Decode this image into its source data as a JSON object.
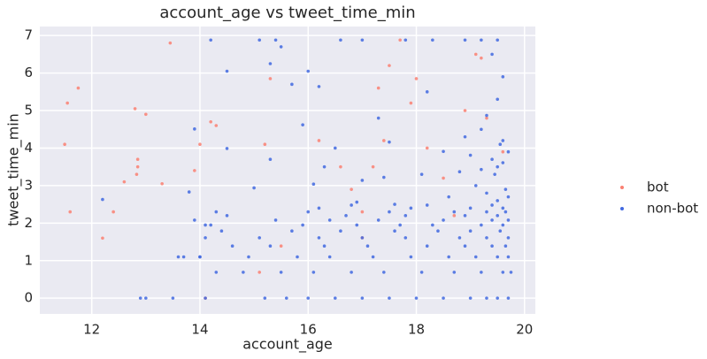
{
  "chart_data": {
    "type": "scatter",
    "title": "account_age vs tweet_time_min",
    "x_label": "account_age",
    "y_label": "tweet_time_min",
    "xlim": [
      11.04,
      20.2
    ],
    "ylim": [
      -0.42,
      7.24
    ],
    "xticks": [
      12,
      14,
      16,
      18,
      20
    ],
    "yticks": [
      0,
      1,
      2,
      3,
      4,
      5,
      6,
      7
    ],
    "grid": true,
    "legend": "right",
    "series": [
      {
        "name": "bot",
        "color": "#fa8072",
        "x": [
          11.5,
          11.55,
          11.6,
          11.75,
          12.2,
          12.4,
          12.6,
          12.8,
          12.83,
          12.85,
          12.85,
          13.0,
          13.3,
          13.45,
          13.9,
          14.0,
          14.2,
          14.3,
          14.1,
          15.2,
          15.1,
          15.3,
          15.5,
          16.2,
          16.6,
          17.0,
          17.2,
          17.3,
          17.5,
          17.7,
          17.9,
          18.0,
          18.2,
          18.5,
          18.7,
          18.9,
          19.1,
          19.2,
          19.3,
          19.6,
          17.0,
          17.4,
          16.8
        ],
        "values": [
          4.1,
          5.2,
          2.3,
          5.6,
          1.6,
          2.3,
          3.1,
          5.05,
          3.3,
          3.7,
          3.5,
          4.9,
          3.05,
          6.8,
          3.4,
          4.1,
          4.7,
          4.6,
          0,
          4.1,
          0.69,
          5.85,
          1.39,
          4.2,
          3.5,
          2.3,
          3.5,
          5.6,
          6.2,
          6.88,
          5.2,
          5.85,
          4.0,
          3.2,
          2.2,
          5.0,
          6.5,
          6.4,
          4.8,
          3.9,
          1.61,
          4.2,
          2.9
        ]
      },
      {
        "name": "non-bot",
        "color": "#4169e1",
        "x": [
          13.0,
          13.5,
          14.1,
          15.2,
          15.6,
          16.0,
          16.5,
          17.0,
          17.5,
          18.0,
          18.5,
          19.0,
          19.3,
          19.5,
          19.7,
          14.3,
          14.8,
          15.5,
          16.1,
          16.8,
          17.4,
          18.1,
          18.7,
          19.2,
          19.6,
          19.75,
          13.7,
          14.0,
          14.9,
          15.8,
          16.4,
          17.2,
          17.9,
          18.6,
          19.1,
          19.5,
          19.7,
          14.6,
          15.3,
          16.3,
          17.1,
          18.2,
          18.9,
          19.4,
          19.65,
          14.1,
          15.1,
          16.2,
          17.0,
          17.8,
          18.8,
          19.3,
          19.7,
          14.4,
          15.7,
          16.6,
          17.6,
          18.4,
          19.0,
          19.55,
          14.2,
          15.9,
          16.9,
          17.7,
          18.3,
          19.2,
          19.6,
          13.9,
          15.4,
          16.4,
          17.3,
          18.5,
          19.4,
          19.7,
          14.5,
          16.7,
          17.8,
          18.9,
          19.5,
          16.0,
          17.5,
          18.7,
          19.3,
          19.65,
          16.2,
          17.9,
          19.0,
          19.6,
          16.8,
          18.2,
          19.4,
          12.2,
          13.8,
          15.0,
          16.1,
          17.0,
          17.4,
          18.1,
          18.8,
          19.2,
          19.5,
          19.6,
          19.4,
          19.0,
          18.5,
          16.5,
          14.5,
          13.9,
          15.9,
          17.3,
          19.3,
          19.5,
          18.2,
          16.2,
          15.7,
          14.5,
          15.3,
          16.0,
          19.6,
          19.4,
          12.9,
          14.2,
          15.1,
          15.5,
          15.4,
          16.6,
          17.0,
          17.8,
          18.3,
          18.9,
          19.2,
          19.5,
          14.0,
          13.6,
          14.3,
          14.1,
          19.6,
          19.7,
          19.55,
          19.45,
          19.7,
          19.65,
          19.5,
          19.3,
          19.1,
          18.6,
          17.6,
          16.9,
          19.2,
          18.9,
          17.5,
          16.3,
          15.3
        ],
        "values": [
          0,
          0,
          0,
          0,
          0,
          0,
          0,
          0,
          0,
          0,
          0,
          0,
          0,
          0,
          0,
          0.69,
          0.69,
          0.69,
          0.69,
          0.69,
          0.69,
          0.69,
          0.69,
          0.69,
          0.69,
          0.69,
          1.1,
          1.1,
          1.1,
          1.1,
          1.1,
          1.1,
          1.1,
          1.1,
          1.1,
          1.1,
          1.1,
          1.39,
          1.39,
          1.39,
          1.39,
          1.39,
          1.39,
          1.39,
          1.39,
          1.61,
          1.61,
          1.61,
          1.61,
          1.61,
          1.61,
          1.61,
          1.61,
          1.79,
          1.79,
          1.79,
          1.79,
          1.79,
          1.79,
          1.79,
          1.95,
          1.95,
          1.95,
          1.95,
          1.95,
          1.95,
          1.95,
          2.08,
          2.08,
          2.08,
          2.08,
          2.08,
          2.08,
          2.08,
          2.2,
          2.2,
          2.2,
          2.2,
          2.2,
          2.3,
          2.3,
          2.3,
          2.3,
          2.3,
          2.4,
          2.4,
          2.4,
          2.4,
          2.48,
          2.48,
          2.48,
          2.63,
          2.83,
          2.94,
          3.04,
          3.14,
          3.22,
          3.3,
          3.37,
          3.43,
          3.5,
          3.61,
          3.7,
          3.81,
          3.91,
          4.0,
          3.99,
          4.51,
          4.62,
          4.8,
          4.87,
          5.3,
          5.5,
          5.64,
          5.7,
          6.05,
          6.25,
          6.05,
          5.9,
          6.5,
          0,
          6.88,
          6.88,
          6.7,
          6.88,
          6.88,
          6.88,
          6.88,
          6.88,
          6.88,
          6.88,
          6.88,
          1.1,
          1.1,
          2.3,
          1.95,
          4.2,
          3.9,
          4.1,
          3.3,
          2.7,
          2.9,
          2.6,
          2.8,
          3.0,
          2.7,
          2.5,
          2.56,
          4.5,
          4.3,
          4.16,
          3.5,
          3.7
        ]
      }
    ]
  }
}
